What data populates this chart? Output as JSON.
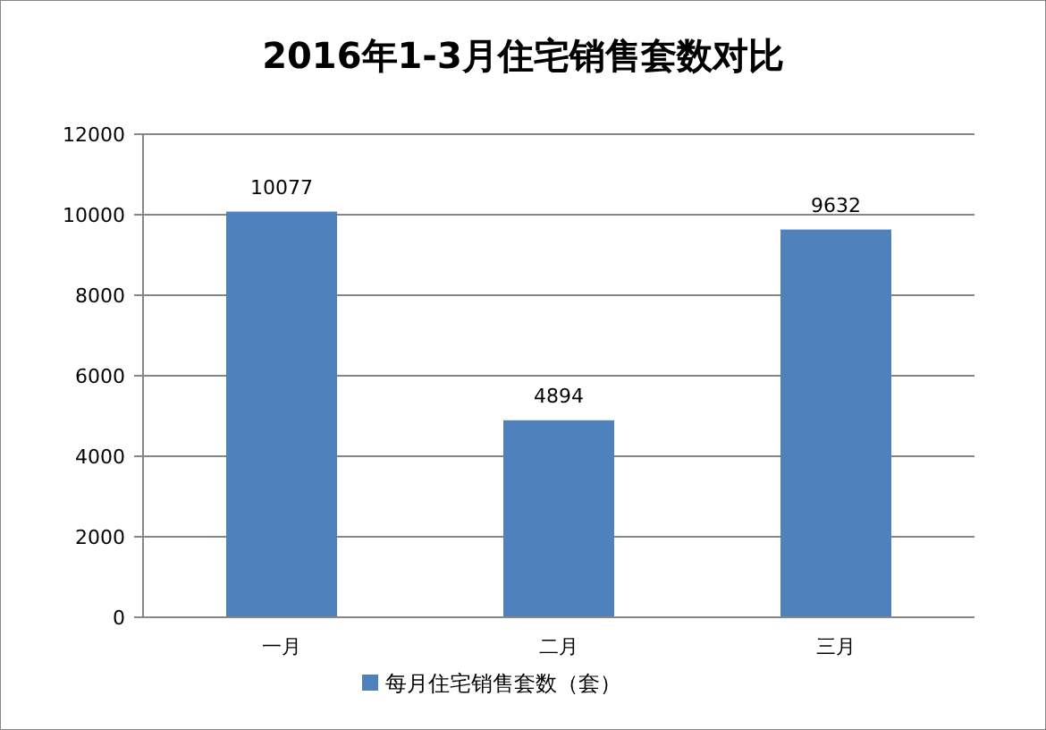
{
  "chart_data": {
    "type": "bar",
    "title": "2016年1-3月住宅销售套数对比",
    "categories": [
      "一月",
      "二月",
      "三月"
    ],
    "series": [
      {
        "name": "每月住宅销售套数（套）",
        "color": "#4f81bd",
        "values": [
          10077,
          4894,
          9632
        ]
      }
    ],
    "ylim": [
      0,
      12000
    ],
    "yticks": [
      0,
      2000,
      4000,
      6000,
      8000,
      10000,
      12000
    ],
    "grid": "y",
    "data_labels": true,
    "legend": "bottom"
  }
}
